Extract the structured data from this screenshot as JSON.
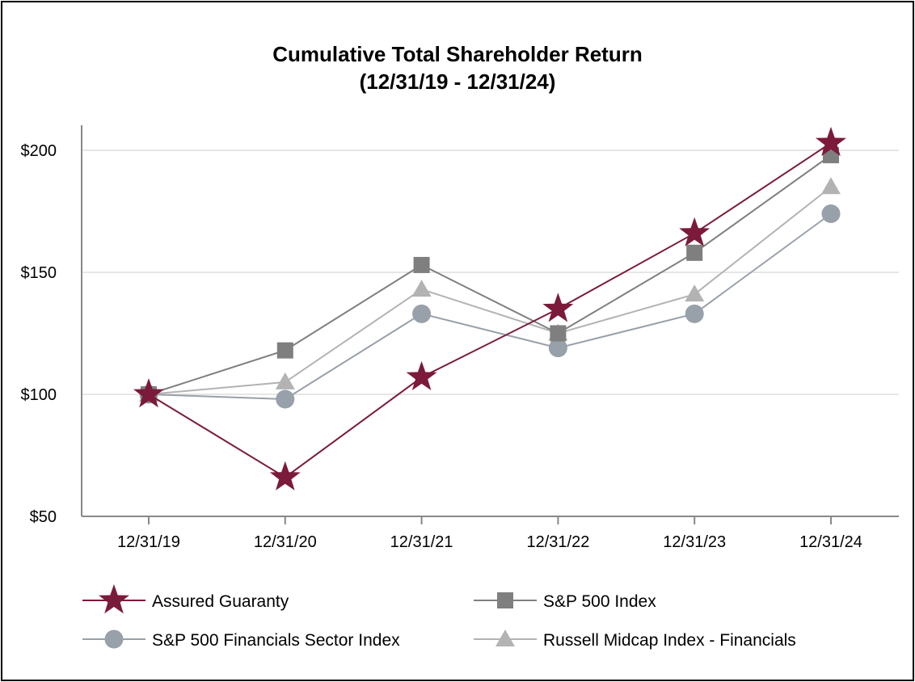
{
  "chart_data": {
    "type": "line",
    "title": "Cumulative Total Shareholder Return",
    "subtitle": "(12/31/19 - 12/31/24)",
    "xlabel": "",
    "ylabel": "",
    "categories": [
      "12/31/19",
      "12/31/20",
      "12/31/21",
      "12/31/22",
      "12/31/23",
      "12/31/24"
    ],
    "ylim": [
      50,
      210
    ],
    "yticks": [
      50,
      100,
      150,
      200
    ],
    "ytick_labels": [
      "$50",
      "$100",
      "$150",
      "$200"
    ],
    "grid": true,
    "legend_position": "bottom",
    "series": [
      {
        "name": "Assured Guaranty",
        "marker": "star",
        "color": "#7b1a3a",
        "values": [
          100,
          66,
          107,
          135,
          166,
          203
        ]
      },
      {
        "name": "S&P 500 Index",
        "marker": "square",
        "color": "#7f7f7f",
        "values": [
          100,
          118,
          153,
          125,
          158,
          198
        ]
      },
      {
        "name": "S&P 500 Financials Sector Index",
        "marker": "circle",
        "color": "#98a0aa",
        "values": [
          100,
          98,
          133,
          119,
          133,
          174
        ]
      },
      {
        "name": "Russell Midcap Index - Financials",
        "marker": "triangle",
        "color": "#b3b3b3",
        "values": [
          100,
          105,
          143,
          125,
          141,
          185
        ]
      }
    ]
  }
}
